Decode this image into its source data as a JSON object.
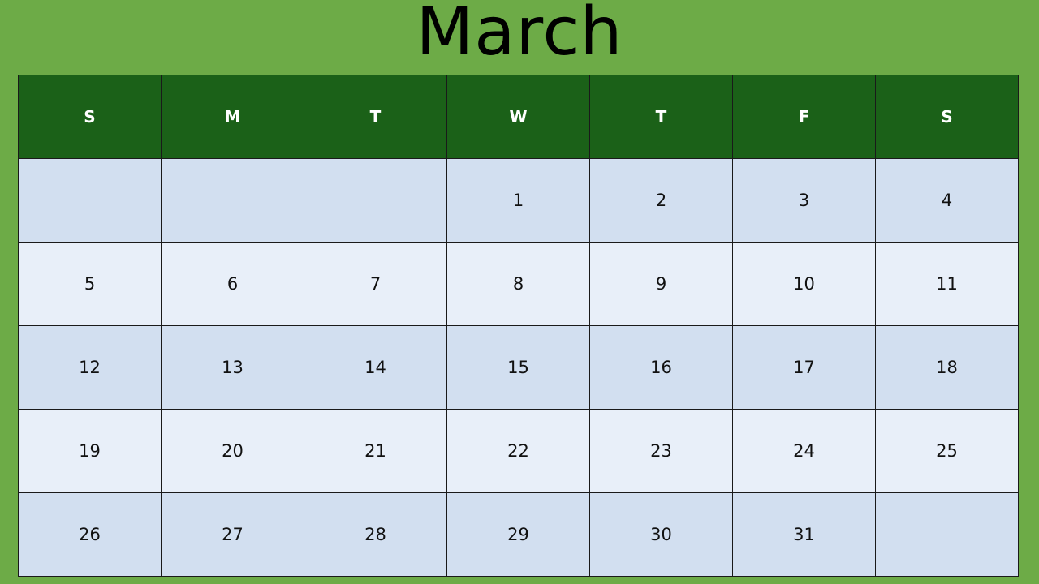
{
  "calendar": {
    "month": "March",
    "weekday_headers": [
      "S",
      "M",
      "T",
      "W",
      "T",
      "F",
      "S"
    ],
    "weeks": [
      [
        "",
        "",
        "",
        "1",
        "2",
        "3",
        "4"
      ],
      [
        "5",
        "6",
        "7",
        "8",
        "9",
        "10",
        "11"
      ],
      [
        "12",
        "13",
        "14",
        "15",
        "16",
        "17",
        "18"
      ],
      [
        "19",
        "20",
        "21",
        "22",
        "23",
        "24",
        "25"
      ],
      [
        "26",
        "27",
        "28",
        "29",
        "30",
        "31",
        ""
      ]
    ]
  },
  "colors": {
    "background": "#6dab47",
    "header_fill": "#1b6118",
    "header_text": "#ffffff",
    "row_dark": "#d2dff0",
    "row_light": "#e8eff9",
    "grid_lines": "#1a1a1a"
  }
}
